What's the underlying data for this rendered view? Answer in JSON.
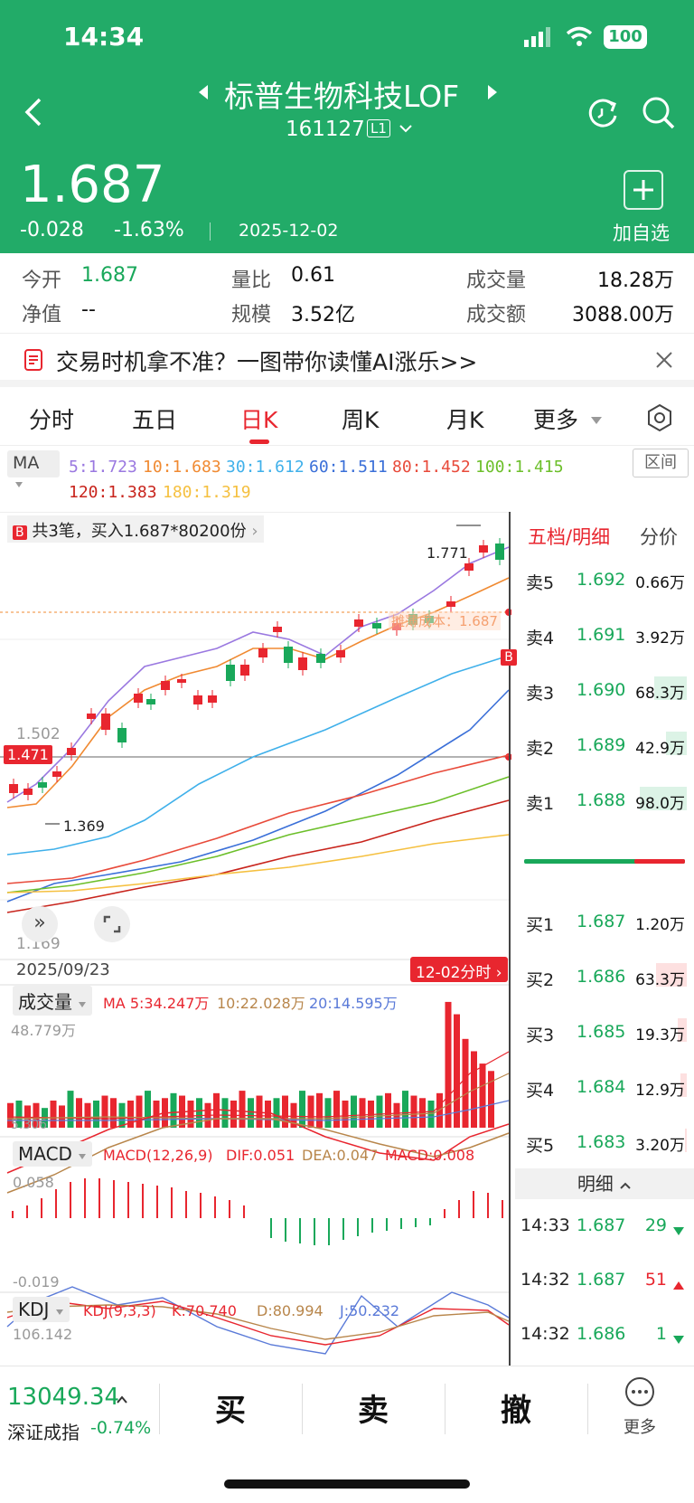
{
  "status": {
    "time": "14:34",
    "battery": "100"
  },
  "header": {
    "title": "标普生物科技LOF",
    "code": "161127",
    "level_badge": "L1",
    "price": "1.687",
    "change": "-0.028",
    "change_pct": "-1.63%",
    "date": "2025-12-02",
    "add_watch_label": "加自选"
  },
  "stats": {
    "open_label": "今开",
    "open_value": "1.687",
    "nav_label": "净值",
    "nav_value": "--",
    "vol_ratio_label": "量比",
    "vol_ratio_value": "0.61",
    "scale_label": "规模",
    "scale_value": "3.52亿",
    "volume_label": "成交量",
    "volume_value": "18.28万",
    "amount_label": "成交额",
    "amount_value": "3088.00万"
  },
  "banner": {
    "text": "交易时机拿不准？一图带你读懂AI涨乐>>"
  },
  "tabs": {
    "t1": "分时",
    "t2": "五日",
    "t3": "日K",
    "t4": "周K",
    "t5": "月K",
    "t6": "更多"
  },
  "ma": {
    "label": "MA",
    "interval": "区间",
    "ma5": "5:1.723",
    "ma10": "10:1.683",
    "ma30": "30:1.612",
    "ma60": "60:1.511",
    "ma80": "80:1.452",
    "ma100": "100:1.415",
    "ma120": "120:1.383",
    "ma180": "180:1.319",
    "colors": {
      "ma5": "#9a78e0",
      "ma10": "#f08a32",
      "ma30": "#3fb0ea",
      "ma60": "#3a6fd8",
      "ma80": "#e84a3a",
      "ma100": "#6cbf2a",
      "ma120": "#c8241c",
      "ma180": "#f5c040"
    }
  },
  "kchart": {
    "trade_note": "共3笔，买入1.687*80200份",
    "badge": "B",
    "high_label": "1.771",
    "low_label": "1.369",
    "level_1502": "1.502",
    "crosshair": "1.471",
    "bottom_level": "1.169",
    "cost_label": "摊薄成本：1.687",
    "start_date": "2025/09/23",
    "intraday_btn": "12-02分时"
  },
  "volume": {
    "label": "成交量",
    "ma_text": "MA 5:34.247万",
    "ma10": "10:22.028万",
    "ma20": "20:14.595万",
    "max": "48.779万",
    "min": "5.306"
  },
  "macd": {
    "label": "MACD",
    "params": "MACD(12,26,9)",
    "dif": "DIF:0.051",
    "dea": "DEA:0.047",
    "macd": "MACD:0.008",
    "max": "0.058",
    "min": "-0.019"
  },
  "kdj": {
    "label": "KDJ",
    "params": "KDJ(9,3,3)",
    "k": "K:70.740",
    "d": "D:80.994",
    "j": "J:50.232",
    "max": "106.142"
  },
  "orderbook": {
    "tab_active": "五档/明细",
    "tab_other": "分价",
    "asks": [
      {
        "label": "卖5",
        "price": "1.692",
        "vol": "0.66万",
        "level": 0.0
      },
      {
        "label": "卖4",
        "price": "1.691",
        "vol": "3.92万",
        "level": 0.0
      },
      {
        "label": "卖3",
        "price": "1.690",
        "vol": "68.3万",
        "level": 0.7
      },
      {
        "label": "卖2",
        "price": "1.689",
        "vol": "42.9万",
        "level": 0.44
      },
      {
        "label": "卖1",
        "price": "1.688",
        "vol": "98.0万",
        "level": 1.0
      }
    ],
    "bids": [
      {
        "label": "买1",
        "price": "1.687",
        "vol": "1.20万",
        "level": 0.0
      },
      {
        "label": "买2",
        "price": "1.686",
        "vol": "63.3万",
        "level": 0.65
      },
      {
        "label": "买3",
        "price": "1.685",
        "vol": "19.3万",
        "level": 0.2
      },
      {
        "label": "买4",
        "price": "1.684",
        "vol": "12.9万",
        "level": 0.13
      },
      {
        "label": "买5",
        "price": "1.683",
        "vol": "3.20万",
        "level": 0.03
      }
    ],
    "detail_label": "明细",
    "trades": [
      {
        "time": "14:33",
        "price": "1.687",
        "vol": "29",
        "dir": "down"
      },
      {
        "time": "14:32",
        "price": "1.687",
        "vol": "51",
        "dir": "up"
      },
      {
        "time": "14:32",
        "price": "1.686",
        "vol": "1",
        "dir": "down"
      }
    ]
  },
  "bottom": {
    "index_value": "13049.34",
    "index_name": "深证成指",
    "index_change": "-0.74%",
    "buy": "买",
    "sell": "卖",
    "cancel": "撤",
    "more": "更多"
  }
}
